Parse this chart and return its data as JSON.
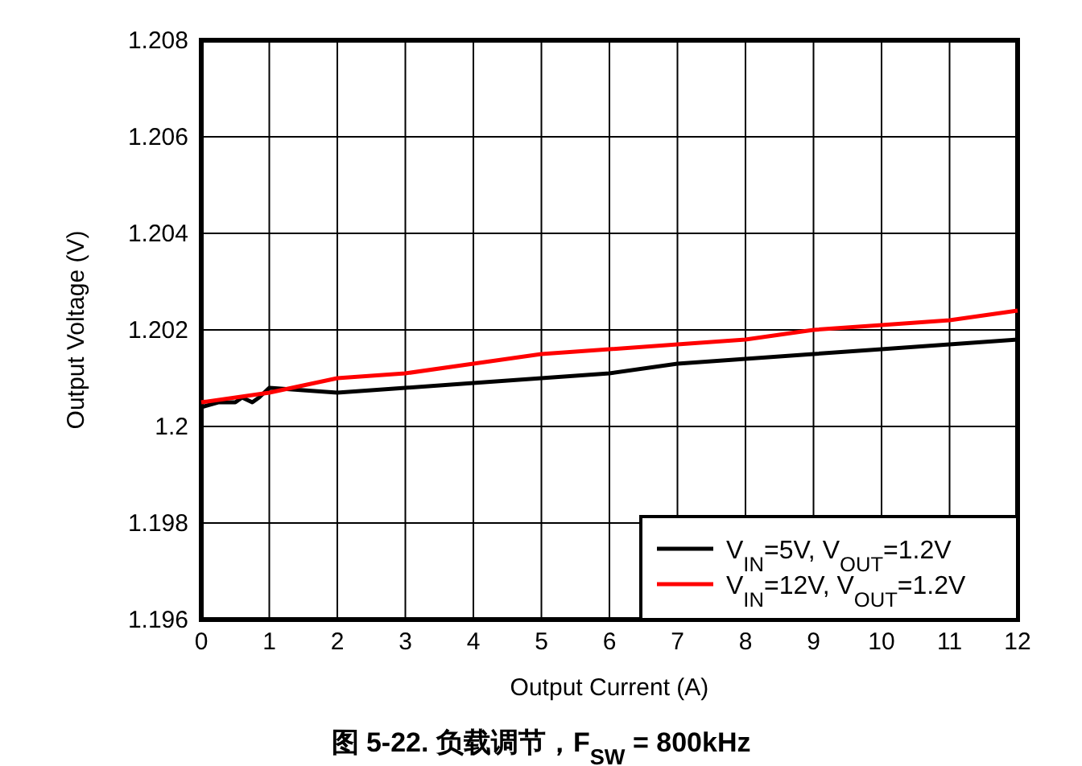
{
  "chart_data": {
    "type": "line",
    "title": "图 5-22. 负载调节，F$_{SW}$ = 800kHz",
    "xlabel": "Output Current (A)",
    "ylabel": "Output Voltage (V)",
    "xlim": [
      0,
      12
    ],
    "xticks": [
      0,
      1,
      2,
      3,
      4,
      5,
      6,
      7,
      8,
      9,
      10,
      11,
      12
    ],
    "ylim": [
      1.196,
      1.208
    ],
    "yticks": [
      1.196,
      1.198,
      1.2,
      1.202,
      1.204,
      1.206,
      1.208
    ],
    "grid": true,
    "legend": "bottom right",
    "marker": "none",
    "line_style": "solid",
    "series": [
      {
        "name": "V$_{IN}$=5V, V$_{OUT}$=1.2V",
        "color": "#000000",
        "x": [
          0,
          0.25,
          0.5,
          0.6,
          0.75,
          0.85,
          1,
          2,
          3,
          4,
          5,
          6,
          7,
          8,
          9,
          10,
          11,
          12
        ],
        "values": [
          1.2004,
          1.2005,
          1.2005,
          1.2006,
          1.2005,
          1.2006,
          1.2008,
          1.2007,
          1.2008,
          1.2009,
          1.201,
          1.2011,
          1.2013,
          1.2014,
          1.2015,
          1.2016,
          1.2017,
          1.2018
        ]
      },
      {
        "name": "V$_{IN}$=12V, V$_{OUT}$=1.2V",
        "color": "#ff0000",
        "x": [
          0,
          1,
          2,
          3,
          4,
          5,
          6,
          7,
          8,
          9,
          10,
          11,
          12
        ],
        "values": [
          1.2005,
          1.2007,
          1.201,
          1.2011,
          1.2013,
          1.2015,
          1.2016,
          1.2017,
          1.2018,
          1.202,
          1.2021,
          1.2022,
          1.2024
        ]
      }
    ]
  }
}
